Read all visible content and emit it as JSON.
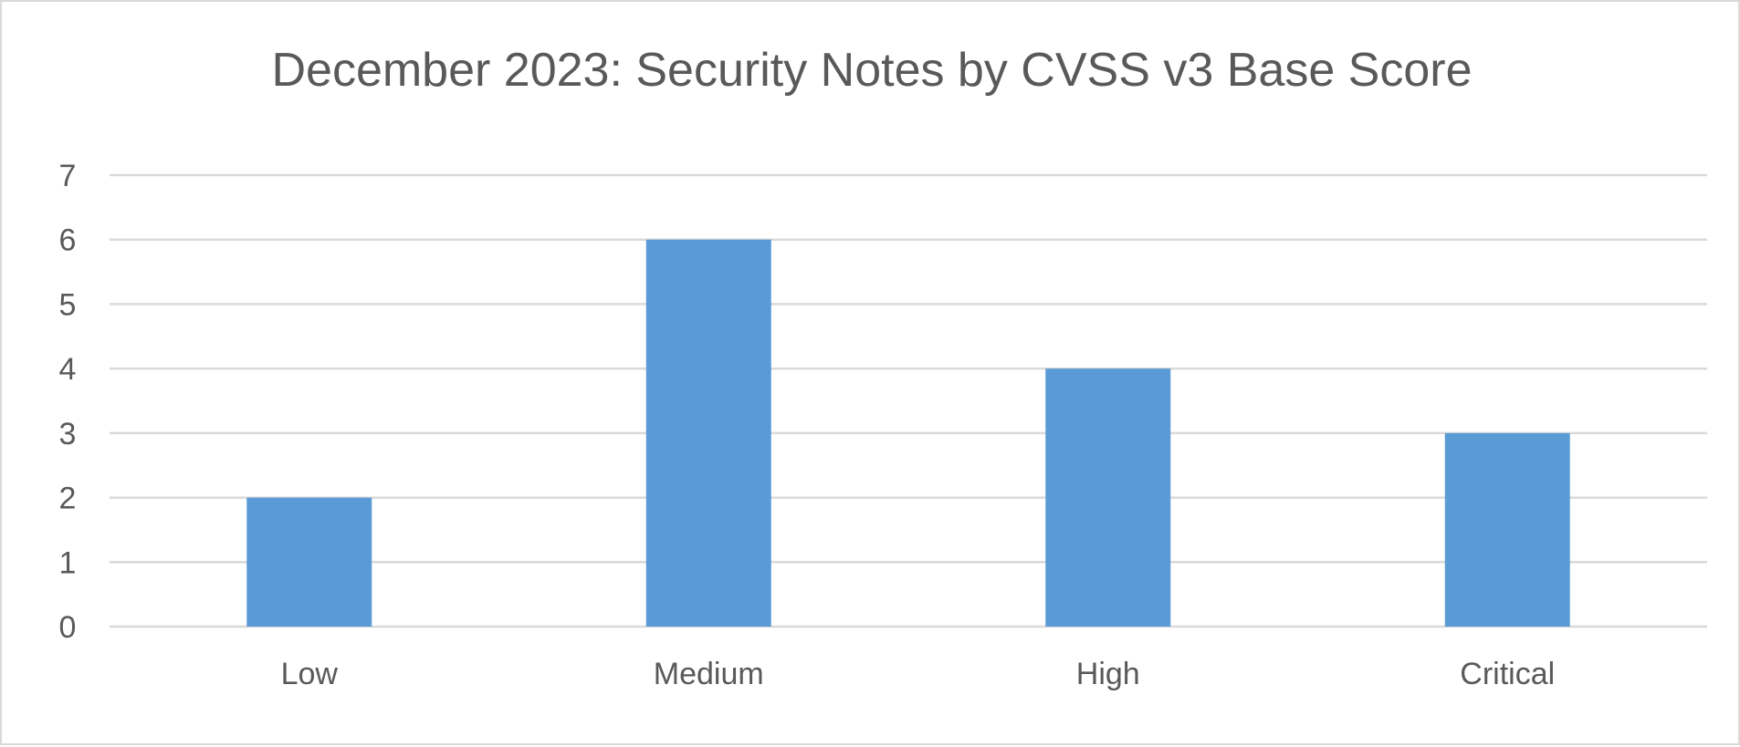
{
  "chart_data": {
    "type": "bar",
    "title": "December 2023: Security Notes by CVSS v3 Base Score",
    "xlabel": "",
    "ylabel": "",
    "categories": [
      "Low",
      "Medium",
      "High",
      "Critical"
    ],
    "values": [
      2,
      6,
      4,
      3
    ],
    "ylim": [
      0,
      7
    ],
    "yticks": [
      "0",
      "1",
      "2",
      "3",
      "4",
      "5",
      "6",
      "7"
    ],
    "grid": true,
    "legend": "none",
    "bar_color": "#5b9bd5",
    "grid_color": "#d9d9d9",
    "text_color": "#595959"
  }
}
